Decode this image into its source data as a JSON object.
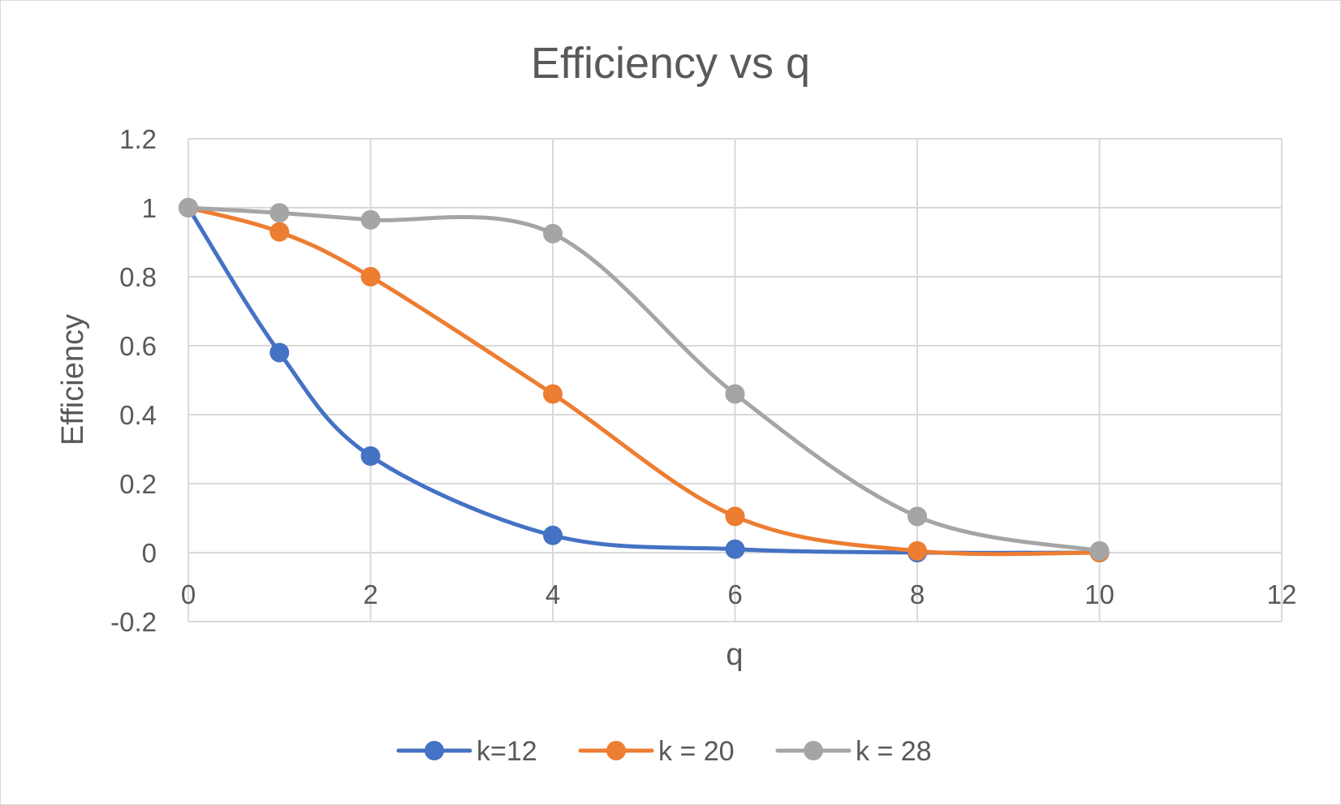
{
  "chart_data": {
    "type": "line",
    "smooth": true,
    "markers": true,
    "title": "Efficiency vs q",
    "xlabel": "q",
    "ylabel": "Efficiency",
    "xlim": [
      0,
      12
    ],
    "ylim": [
      -0.2,
      1.2
    ],
    "x_ticks": [
      0,
      2,
      4,
      6,
      8,
      10,
      12
    ],
    "y_ticks": [
      -0.2,
      0,
      0.2,
      0.4,
      0.6,
      0.8,
      1,
      1.2
    ],
    "x_tick_labels": [
      "0",
      "2",
      "4",
      "6",
      "8",
      "10",
      "12"
    ],
    "y_tick_labels": [
      "-0.2",
      "0",
      "0.2",
      "0.4",
      "0.6",
      "0.8",
      "1",
      "1.2"
    ],
    "grid": true,
    "legend_position": "bottom",
    "series": [
      {
        "name": "k=12",
        "color": "#4472c4",
        "x": [
          0,
          1,
          2,
          4,
          6,
          8,
          10
        ],
        "y": [
          1.0,
          0.58,
          0.28,
          0.05,
          0.01,
          0.0,
          0.0
        ]
      },
      {
        "name": "k = 20",
        "color": "#ed7d31",
        "x": [
          0,
          1,
          2,
          4,
          6,
          8,
          10
        ],
        "y": [
          1.0,
          0.93,
          0.8,
          0.46,
          0.105,
          0.005,
          0.0
        ]
      },
      {
        "name": "k = 28",
        "color": "#a5a5a5",
        "x": [
          0,
          1,
          2,
          4,
          6,
          8,
          10
        ],
        "y": [
          1.0,
          0.985,
          0.965,
          0.925,
          0.46,
          0.105,
          0.005
        ]
      }
    ]
  }
}
